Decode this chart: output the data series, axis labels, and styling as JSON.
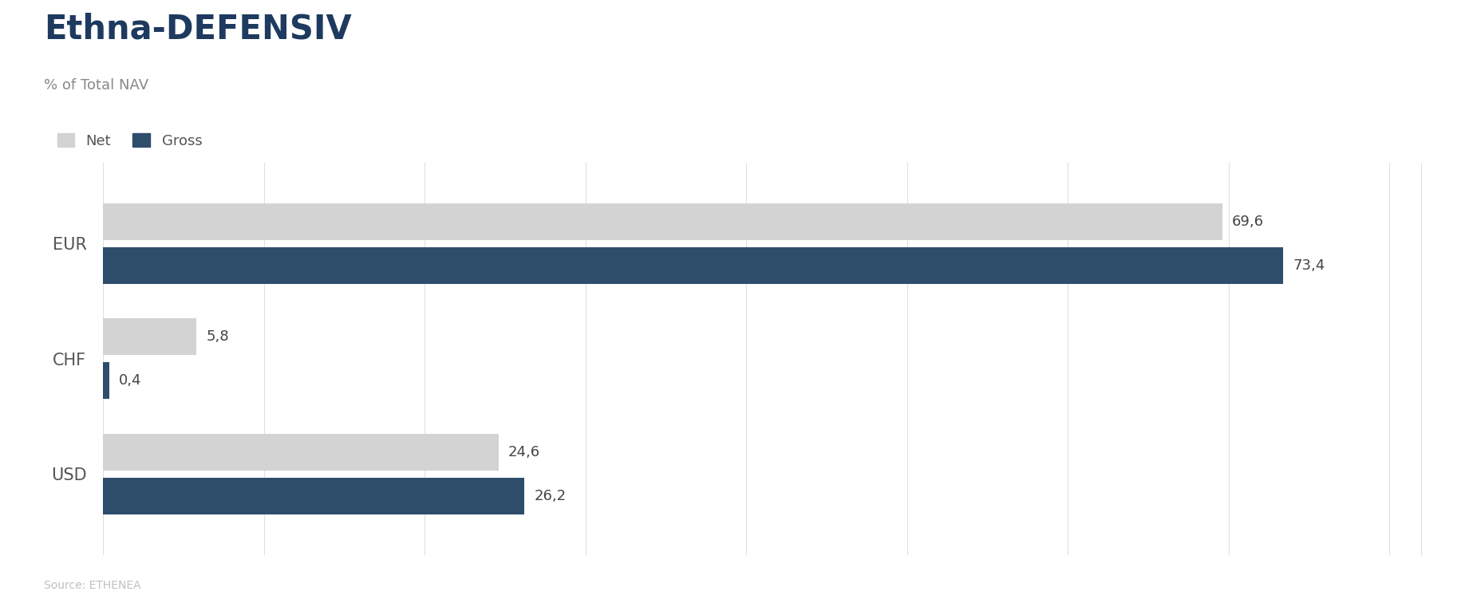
{
  "title": "Ethna-DEFENSIV",
  "subtitle": "% of Total NAV",
  "source": "Source: ETHENEA",
  "categories": [
    "EUR",
    "CHF",
    "USD"
  ],
  "net_values": [
    69.6,
    5.8,
    24.6
  ],
  "gross_values": [
    73.4,
    0.4,
    26.2
  ],
  "net_color": "#d3d3d3",
  "gross_color": "#2e4d6b",
  "title_color": "#1e3a5f",
  "subtitle_color": "#888888",
  "label_color": "#444444",
  "source_color": "#c0c0c0",
  "axis_label_color": "#555555",
  "grid_color": "#e0e0e0",
  "background_color": "#ffffff",
  "bar_height": 0.32,
  "xlim": [
    0,
    82
  ],
  "figsize": [
    18.46,
    7.56
  ],
  "dpi": 100
}
